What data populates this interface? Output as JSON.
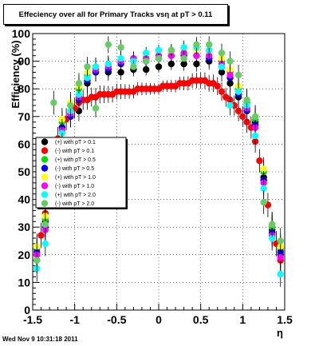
{
  "chart_data": {
    "type": "scatter",
    "title": "Effeciency over all for Primary Tracks vsη at pT > 0.11",
    "xlabel": "η",
    "ylabel": "Efficiency (%)",
    "xlim": [
      -1.5,
      1.5
    ],
    "ylim": [
      0,
      100
    ],
    "xticks": [
      "-1.5",
      "-1",
      "-0.5",
      "0",
      "0.5",
      "1",
      "1.5"
    ],
    "yticks": [
      "0",
      "10",
      "20",
      "30",
      "40",
      "50",
      "60",
      "70",
      "80",
      "90",
      "100"
    ],
    "grid": true,
    "legend_position": "left-middle",
    "series": [
      {
        "name": "(+) with pT > 0.1",
        "color": "#000000",
        "x": [
          -1.45,
          -1.35,
          -1.25,
          -1.15,
          -1.05,
          -0.95,
          -0.85,
          -0.75,
          -0.6,
          -0.45,
          -0.3,
          -0.15,
          0.0,
          0.15,
          0.3,
          0.45,
          0.6,
          0.75,
          0.85,
          0.95,
          1.05,
          1.15,
          1.25,
          1.35,
          1.45
        ],
        "y": [
          20,
          32,
          58,
          66,
          70,
          72,
          82,
          86,
          86,
          86,
          87,
          87,
          88,
          89,
          89,
          89,
          90,
          86,
          82,
          77,
          73,
          68,
          48,
          29,
          20
        ]
      },
      {
        "name": "(-) with pT > 0.1",
        "color": "#ff0000",
        "x": [
          -1.45,
          -1.4,
          -1.35,
          -1.3,
          -1.25,
          -1.2,
          -1.15,
          -1.1,
          -1.05,
          -1.0,
          -0.95,
          -0.9,
          -0.85,
          -0.8,
          -0.75,
          -0.7,
          -0.65,
          -0.6,
          -0.55,
          -0.5,
          -0.45,
          -0.4,
          -0.35,
          -0.3,
          -0.25,
          -0.2,
          -0.15,
          -0.1,
          -0.05,
          0.0,
          0.05,
          0.1,
          0.15,
          0.2,
          0.25,
          0.3,
          0.35,
          0.4,
          0.45,
          0.5,
          0.55,
          0.6,
          0.65,
          0.7,
          0.75,
          0.8,
          0.85,
          0.9,
          0.95,
          1.0,
          1.05,
          1.1,
          1.15,
          1.2,
          1.25,
          1.3,
          1.35,
          1.4,
          1.45
        ],
        "y": [
          18,
          27,
          35,
          45,
          55,
          62,
          66,
          69,
          71,
          73,
          75,
          76,
          76,
          77,
          77,
          78,
          78,
          78,
          78,
          79,
          79,
          79,
          79,
          79,
          80,
          80,
          80,
          80,
          80,
          80,
          81,
          81,
          81,
          81,
          82,
          82,
          82,
          83,
          83,
          83,
          83,
          82,
          82,
          81,
          79,
          77,
          76,
          74,
          72,
          70,
          68,
          66,
          61,
          54,
          47,
          38,
          30,
          24,
          18
        ]
      },
      {
        "name": "(+) with pT > 0.5",
        "color": "#00dd00",
        "x": [
          -1.45,
          -1.35,
          -1.25,
          -1.15,
          -1.05,
          -0.95,
          -0.85,
          -0.75,
          -0.6,
          -0.45,
          -0.3,
          -0.15,
          0.0,
          0.15,
          0.3,
          0.45,
          0.6,
          0.75,
          0.85,
          0.95,
          1.05,
          1.15,
          1.25,
          1.35,
          1.45
        ],
        "y": [
          22,
          33,
          57,
          68,
          74,
          80,
          85,
          87,
          88,
          90,
          91,
          92,
          92,
          93,
          93,
          94,
          93,
          90,
          86,
          80,
          75,
          69,
          50,
          30,
          22
        ]
      },
      {
        "name": "(-) with pT > 0.5",
        "color": "#0000ff",
        "x": [
          -1.45,
          -1.35,
          -1.25,
          -1.15,
          -1.05,
          -0.95,
          -0.85,
          -0.75,
          -0.6,
          -0.45,
          -0.3,
          -0.15,
          0.0,
          0.15,
          0.3,
          0.45,
          0.6,
          0.75,
          0.85,
          0.95,
          1.05,
          1.15,
          1.25,
          1.35,
          1.45
        ],
        "y": [
          21,
          30,
          55,
          66,
          70,
          76,
          83,
          86,
          87,
          89,
          90,
          90,
          91,
          92,
          92,
          92,
          91,
          88,
          84,
          78,
          72,
          67,
          47,
          28,
          21
        ]
      },
      {
        "name": "(+) with pT > 1.0",
        "color": "#ffff00",
        "x": [
          -1.45,
          -1.35,
          -1.25,
          -1.15,
          -1.05,
          -0.95,
          -0.85,
          -0.75,
          -0.6,
          -0.45,
          -0.3,
          -0.15,
          0.0,
          0.15,
          0.3,
          0.45,
          0.6,
          0.75,
          0.85,
          0.95,
          1.05,
          1.15,
          1.25,
          1.35,
          1.45
        ],
        "y": [
          23,
          34,
          58,
          69,
          75,
          81,
          86,
          88,
          89,
          90,
          91,
          92,
          93,
          93,
          94,
          94,
          93,
          91,
          87,
          81,
          76,
          70,
          51,
          31,
          23
        ]
      },
      {
        "name": "(-) with pT > 1.0",
        "color": "#ff00ff",
        "x": [
          -1.45,
          -1.35,
          -1.25,
          -1.15,
          -1.05,
          -0.95,
          -0.85,
          -0.75,
          -0.6,
          -0.45,
          -0.3,
          -0.15,
          0.0,
          0.15,
          0.3,
          0.45,
          0.6,
          0.75,
          0.85,
          0.95,
          1.05,
          1.15,
          1.25,
          1.35,
          1.45
        ],
        "y": [
          20,
          29,
          54,
          65,
          71,
          77,
          84,
          87,
          88,
          90,
          91,
          91,
          92,
          92,
          93,
          92,
          92,
          89,
          85,
          79,
          73,
          66,
          46,
          27,
          19
        ]
      },
      {
        "name": "(+) with pT > 2.0",
        "color": "#00ffff",
        "x": [
          -1.45,
          -1.35,
          -1.25,
          -1.15,
          -1.05,
          -0.95,
          -0.85,
          -0.75,
          -0.6,
          -0.45,
          -0.3,
          -0.15,
          0.0,
          0.15,
          0.3,
          0.45,
          0.6,
          0.75,
          0.85,
          0.95,
          1.05,
          1.15,
          1.25,
          1.35,
          1.45
        ],
        "y": [
          15,
          24,
          53,
          64,
          72,
          78,
          84,
          88,
          89,
          91,
          90,
          93,
          94,
          94,
          95,
          95,
          94,
          88,
          74,
          79,
          74,
          63,
          44,
          26,
          13
        ]
      },
      {
        "name": "(-) with pT > 2.0",
        "color": "#66cc66",
        "x": [
          -1.45,
          -1.35,
          -1.25,
          -1.15,
          -1.05,
          -0.95,
          -0.85,
          -0.75,
          -0.6,
          -0.45,
          -0.3,
          -0.15,
          0.0,
          0.15,
          0.3,
          0.45,
          0.6,
          0.75,
          0.85,
          0.95,
          1.05,
          1.15,
          1.25,
          1.35,
          1.45
        ],
        "y": [
          18,
          31,
          75,
          60,
          74,
          82,
          88,
          73,
          96,
          95,
          88,
          90,
          91,
          94,
          91,
          96,
          96,
          93,
          90,
          85,
          76,
          70,
          39,
          31,
          25
        ]
      }
    ]
  },
  "footer": {
    "timestamp": "Wed Nov  9 10:31:18 2011"
  }
}
